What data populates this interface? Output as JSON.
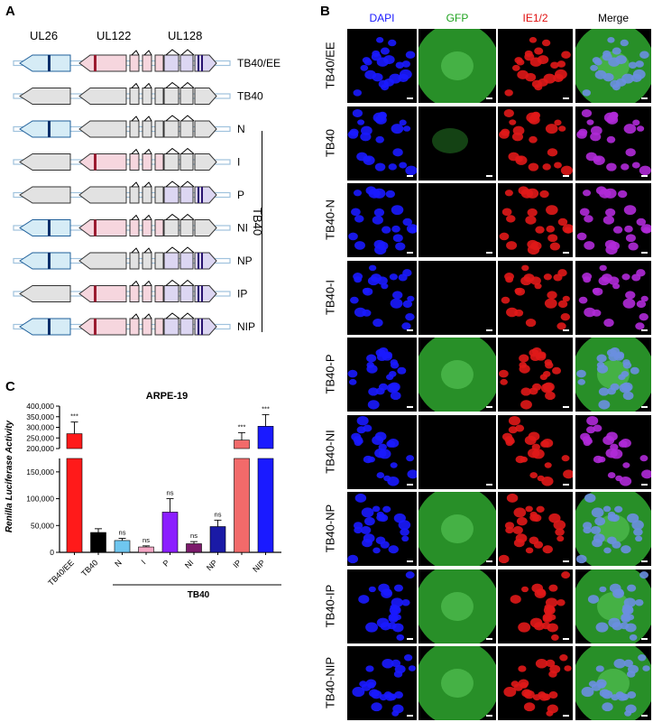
{
  "panel_a": {
    "letter": "A",
    "genes": [
      "UL26",
      "UL122",
      "UL128"
    ],
    "constructs": [
      {
        "label": "TB40/EE",
        "ul26": true,
        "ul122": true,
        "ul128": true
      },
      {
        "label": "TB40",
        "ul26": false,
        "ul122": false,
        "ul128": false
      },
      {
        "label": "N",
        "ul26": true,
        "ul122": false,
        "ul128": false
      },
      {
        "label": "I",
        "ul26": false,
        "ul122": true,
        "ul128": false
      },
      {
        "label": "P",
        "ul26": false,
        "ul122": false,
        "ul128": true
      },
      {
        "label": "NI",
        "ul26": true,
        "ul122": true,
        "ul128": false
      },
      {
        "label": "NP",
        "ul26": true,
        "ul122": false,
        "ul128": true
      },
      {
        "label": "IP",
        "ul26": false,
        "ul122": true,
        "ul128": true
      },
      {
        "label": "NIP",
        "ul26": true,
        "ul122": true,
        "ul128": true
      }
    ],
    "group_label": "TB40",
    "colors": {
      "ul26_fill": "#d6ecf6",
      "ul26_stroke": "#1f5f9a",
      "ul26_mark": "#0b2f6b",
      "ul122_fill": "#f6d6de",
      "ul122_mark": "#9b1b30",
      "ul128_fill": "#dcd6f2",
      "ul128_mark": "#2a1470",
      "grey_fill": "#e2e2e2",
      "backbone": "#9fc2dd"
    }
  },
  "panel_b": {
    "letter": "B",
    "channels": [
      {
        "label": "DAPI",
        "color": "#1a1aff"
      },
      {
        "label": "GFP",
        "color": "#1fa31f"
      },
      {
        "label": "IE1/2",
        "color": "#e01010"
      },
      {
        "label": "Merge",
        "color": "#000000"
      }
    ],
    "rows": [
      {
        "label": "TB40/EE",
        "gfp": true
      },
      {
        "label": "TB40",
        "gfp": false
      },
      {
        "label": "TB40-N",
        "gfp": false
      },
      {
        "label": "TB40-I",
        "gfp": false
      },
      {
        "label": "TB40-P",
        "gfp": true
      },
      {
        "label": "TB40-NI",
        "gfp": false
      },
      {
        "label": "TB40-NP",
        "gfp": true
      },
      {
        "label": "TB40-IP",
        "gfp": true
      },
      {
        "label": "TB40-NIP",
        "gfp": true
      }
    ]
  },
  "panel_c": {
    "letter": "C",
    "group_label": "TB40"
  },
  "chart_data": {
    "type": "bar",
    "title": "ARPE-19",
    "ylabel": "Renilla Luciferase Activity",
    "xlabel": "",
    "categories": [
      "TB40/EE",
      "TB40",
      "N",
      "I",
      "P",
      "NI",
      "NP",
      "IP",
      "NIP"
    ],
    "values": [
      270000,
      37000,
      22000,
      10000,
      75000,
      16000,
      48000,
      240000,
      305000
    ],
    "errors": [
      55000,
      7000,
      4000,
      2000,
      25000,
      4000,
      12000,
      35000,
      55000
    ],
    "significance": [
      "***",
      "",
      "ns",
      "ns",
      "ns",
      "ns",
      "ns",
      "***",
      "***"
    ],
    "colors": [
      "#ff1a1a",
      "#000000",
      "#6fc6ef",
      "#f4a6c4",
      "#8b1fff",
      "#7b1a6b",
      "#1a1aa6",
      "#f26a6a",
      "#1a1aff"
    ],
    "broken_axis": {
      "lower_ticks": [
        "0",
        "50,000",
        "100,000",
        "150,000"
      ],
      "upper_ticks": [
        "200,000",
        "250,000",
        "300,000",
        "350,000",
        "400,000"
      ],
      "lower_range": [
        0,
        175000
      ],
      "upper_range": [
        200000,
        400000
      ]
    }
  }
}
